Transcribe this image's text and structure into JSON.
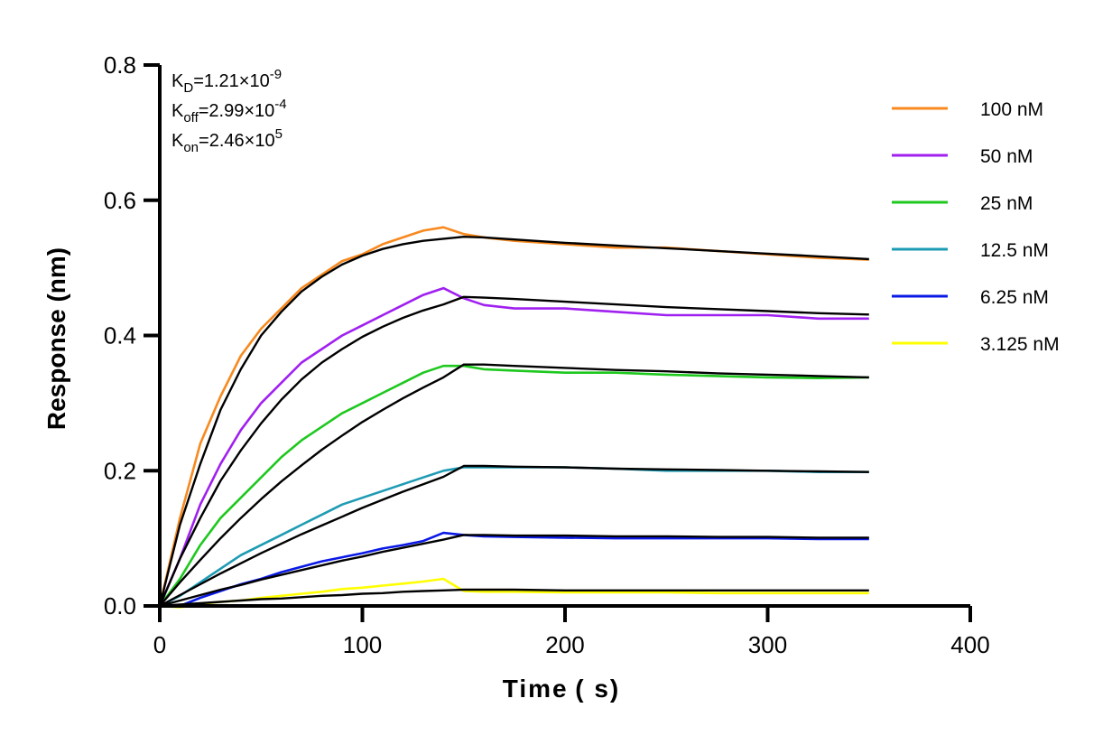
{
  "chart_data": {
    "type": "line",
    "title": "",
    "xlabel": "Time ( s)",
    "ylabel": "Response (nm)",
    "xlim": [
      0,
      400
    ],
    "ylim": [
      0,
      0.8
    ],
    "x_ticks": [
      0,
      100,
      200,
      300,
      400
    ],
    "x_tick_labels": [
      "0",
      "100",
      "200",
      "300",
      "400"
    ],
    "y_ticks": [
      0.0,
      0.2,
      0.4,
      0.6,
      0.8
    ],
    "y_tick_labels": [
      "0.0",
      "0.2",
      "0.4",
      "0.6",
      "0.8"
    ],
    "grid": false,
    "legend_position": "right",
    "annotations": [
      {
        "base": "K",
        "sub": "D",
        "eq": "=1.21×10",
        "sup": "-9"
      },
      {
        "base": "K",
        "sub": "off",
        "eq": "=2.99×10",
        "sup": "-4"
      },
      {
        "base": "K",
        "sub": "on",
        "eq": "=2.46×10",
        "sup": "5"
      }
    ],
    "x": [
      0,
      10,
      20,
      30,
      40,
      50,
      60,
      70,
      80,
      90,
      100,
      110,
      120,
      130,
      140,
      150,
      160,
      175,
      200,
      225,
      250,
      275,
      300,
      325,
      350
    ],
    "series": [
      {
        "name": "100 nM",
        "color": "#f7891f",
        "values": [
          0.0,
          0.13,
          0.24,
          0.31,
          0.37,
          0.41,
          0.44,
          0.47,
          0.49,
          0.51,
          0.52,
          0.535,
          0.545,
          0.555,
          0.56,
          0.55,
          0.545,
          0.54,
          0.535,
          0.53,
          0.53,
          0.525,
          0.52,
          0.515,
          0.512
        ]
      },
      {
        "name": "50 nM",
        "color": "#a020f0",
        "values": [
          0.0,
          0.07,
          0.15,
          0.21,
          0.26,
          0.3,
          0.33,
          0.36,
          0.38,
          0.4,
          0.415,
          0.43,
          0.445,
          0.46,
          0.47,
          0.455,
          0.445,
          0.44,
          0.44,
          0.435,
          0.43,
          0.43,
          0.43,
          0.425,
          0.425
        ]
      },
      {
        "name": "25 nM",
        "color": "#1ec81e",
        "values": [
          0.0,
          0.04,
          0.09,
          0.13,
          0.16,
          0.19,
          0.22,
          0.245,
          0.265,
          0.285,
          0.3,
          0.315,
          0.33,
          0.345,
          0.355,
          0.355,
          0.35,
          0.348,
          0.345,
          0.345,
          0.342,
          0.34,
          0.338,
          0.337,
          0.338
        ]
      },
      {
        "name": "12.5 nM",
        "color": "#1e9bb4",
        "values": [
          0.0,
          0.015,
          0.035,
          0.055,
          0.075,
          0.09,
          0.105,
          0.12,
          0.135,
          0.15,
          0.16,
          0.17,
          0.18,
          0.19,
          0.2,
          0.205,
          0.205,
          0.205,
          0.205,
          0.203,
          0.2,
          0.2,
          0.2,
          0.198,
          0.198
        ]
      },
      {
        "name": "6.25 nM",
        "color": "#0a19e6",
        "values": [
          0.0,
          0.0,
          0.012,
          0.022,
          0.032,
          0.04,
          0.05,
          0.058,
          0.066,
          0.072,
          0.078,
          0.085,
          0.09,
          0.096,
          0.108,
          0.105,
          0.103,
          0.102,
          0.101,
          0.1,
          0.1,
          0.1,
          0.1,
          0.099,
          0.099
        ]
      },
      {
        "name": "3.125 nM",
        "color": "#ffff00",
        "values": [
          0.0,
          -0.002,
          0.003,
          0.006,
          0.008,
          0.012,
          0.015,
          0.018,
          0.021,
          0.025,
          0.027,
          0.03,
          0.033,
          0.036,
          0.04,
          0.022,
          0.021,
          0.021,
          0.02,
          0.02,
          0.02,
          0.019,
          0.019,
          0.019,
          0.019
        ]
      }
    ],
    "fits": [
      {
        "values": [
          0.0,
          0.12,
          0.21,
          0.29,
          0.35,
          0.4,
          0.435,
          0.465,
          0.487,
          0.505,
          0.518,
          0.528,
          0.535,
          0.54,
          0.543,
          0.546,
          0.545,
          0.542,
          0.537,
          0.533,
          0.529,
          0.525,
          0.521,
          0.517,
          0.513
        ]
      },
      {
        "values": [
          0.0,
          0.07,
          0.13,
          0.185,
          0.23,
          0.27,
          0.305,
          0.335,
          0.36,
          0.38,
          0.398,
          0.413,
          0.426,
          0.437,
          0.446,
          0.457,
          0.456,
          0.454,
          0.45,
          0.446,
          0.442,
          0.439,
          0.436,
          0.433,
          0.431
        ]
      },
      {
        "values": [
          0.0,
          0.035,
          0.068,
          0.1,
          0.13,
          0.158,
          0.184,
          0.208,
          0.231,
          0.252,
          0.272,
          0.29,
          0.307,
          0.323,
          0.338,
          0.357,
          0.357,
          0.355,
          0.352,
          0.349,
          0.347,
          0.344,
          0.342,
          0.34,
          0.338
        ]
      },
      {
        "values": [
          0.0,
          0.016,
          0.032,
          0.048,
          0.063,
          0.078,
          0.092,
          0.106,
          0.119,
          0.132,
          0.145,
          0.157,
          0.169,
          0.18,
          0.191,
          0.207,
          0.207,
          0.206,
          0.205,
          0.203,
          0.202,
          0.201,
          0.2,
          0.199,
          0.198
        ]
      },
      {
        "values": [
          0.0,
          0.008,
          0.016,
          0.024,
          0.031,
          0.039,
          0.046,
          0.053,
          0.06,
          0.067,
          0.073,
          0.08,
          0.086,
          0.092,
          0.098,
          0.105,
          0.105,
          0.104,
          0.104,
          0.103,
          0.103,
          0.102,
          0.102,
          0.101,
          0.101
        ]
      },
      {
        "values": [
          0.0,
          0.002,
          0.004,
          0.006,
          0.008,
          0.01,
          0.011,
          0.013,
          0.015,
          0.016,
          0.018,
          0.019,
          0.021,
          0.022,
          0.023,
          0.024,
          0.024,
          0.024,
          0.023,
          0.023,
          0.023,
          0.023,
          0.023,
          0.023,
          0.023
        ]
      }
    ]
  }
}
